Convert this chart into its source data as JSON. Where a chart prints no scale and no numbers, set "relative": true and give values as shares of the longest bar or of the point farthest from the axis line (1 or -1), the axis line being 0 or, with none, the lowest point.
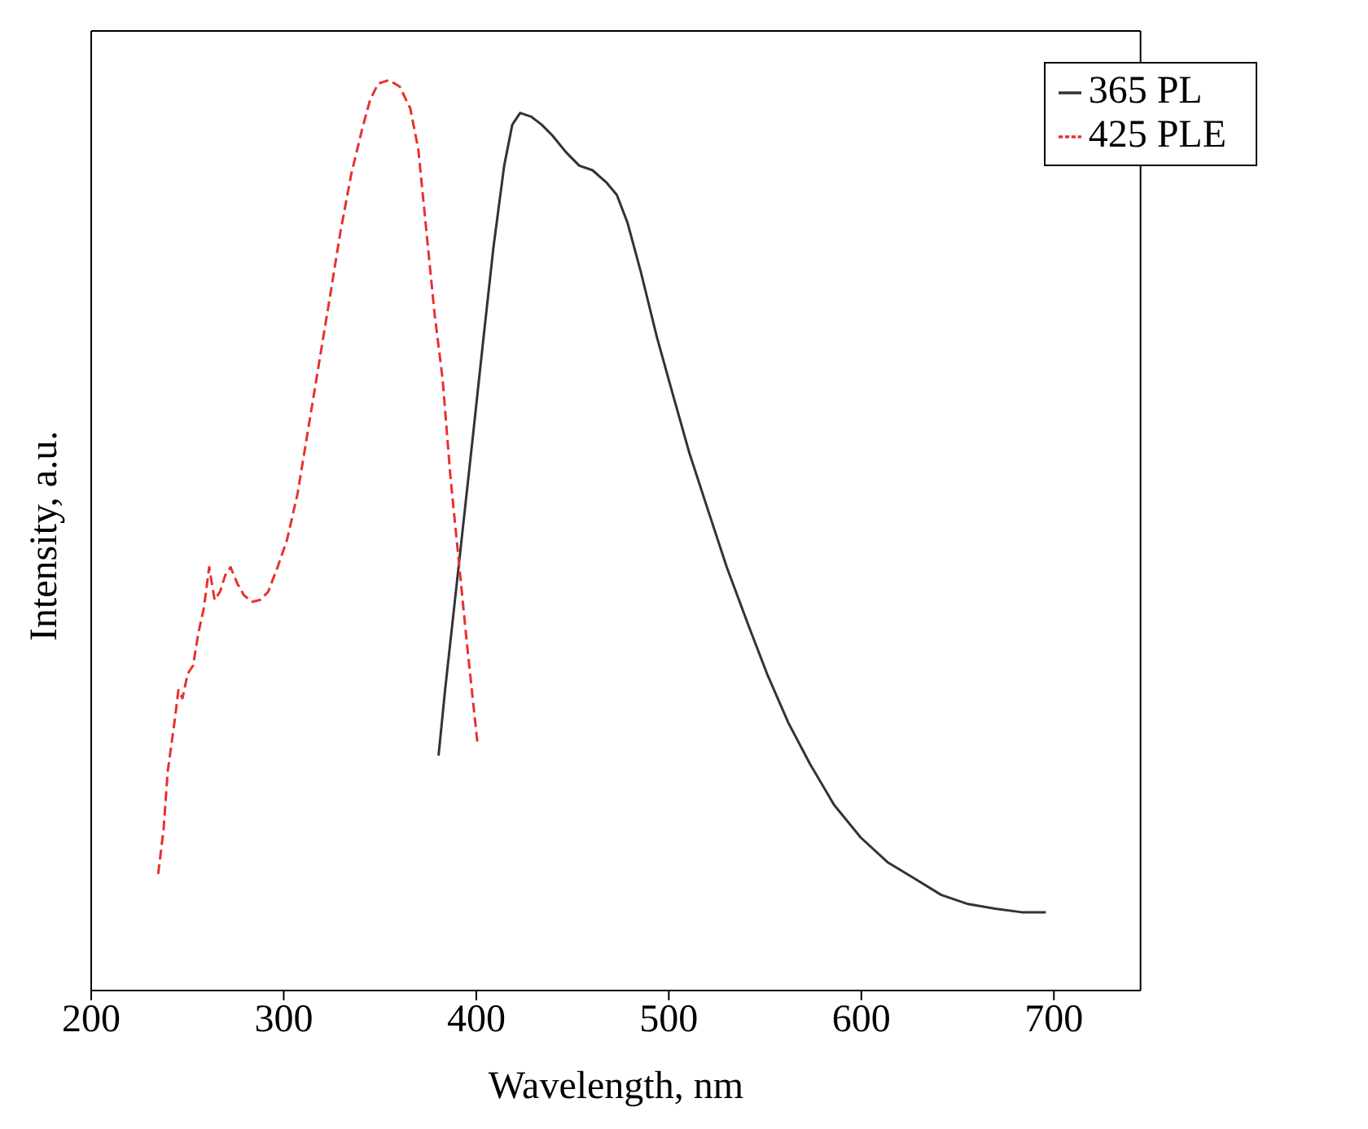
{
  "chart_data": {
    "type": "line",
    "xlabel": "Wavelength, nm",
    "ylabel": "Intensity, a.u.",
    "relative": true,
    "xlim": [
      200,
      745
    ],
    "xticks": [
      200,
      300,
      400,
      500,
      600,
      700
    ],
    "legend": "top right",
    "grid": false,
    "marker": "none",
    "series": [
      {
        "name": "365 PL",
        "color": "#333333",
        "line_style": "solid",
        "x": [
          380.4,
          383.8,
          388.0,
          392.2,
          397.8,
          403.3,
          408.9,
          414.5,
          418.7,
          422.8,
          428.4,
          434.0,
          439.6,
          446.5,
          453.5,
          460.4,
          467.4,
          473.0,
          478.6,
          485.5,
          493.9,
          502.2,
          510.6,
          520.3,
          530.1,
          541.2,
          551.0,
          562.1,
          573.3,
          585.8,
          599.7,
          613.6,
          627.6,
          641.5,
          655.4,
          669.4,
          683.3,
          695.8
        ],
        "values": [
          0.258,
          0.33,
          0.411,
          0.492,
          0.6,
          0.708,
          0.816,
          0.906,
          0.951,
          0.964,
          0.96,
          0.951,
          0.939,
          0.921,
          0.906,
          0.901,
          0.888,
          0.874,
          0.843,
          0.789,
          0.717,
          0.654,
          0.591,
          0.528,
          0.465,
          0.402,
          0.348,
          0.294,
          0.249,
          0.204,
          0.168,
          0.141,
          0.123,
          0.105,
          0.095,
          0.09,
          0.086,
          0.086
        ]
      },
      {
        "name": "425 PLE",
        "color": "#e8312f",
        "line_style": "dashed",
        "x": [
          234.8,
          237.6,
          239.7,
          243.2,
          245.3,
          247.4,
          250.1,
          252.9,
          255.7,
          258.5,
          261.3,
          264.1,
          266.9,
          269.6,
          272.4,
          275.9,
          279.4,
          283.6,
          287.7,
          291.9,
          296.8,
          301.7,
          307.2,
          312.8,
          318.4,
          324.0,
          329.5,
          335.1,
          340.7,
          344.8,
          349.0,
          354.6,
          360.2,
          365.7,
          369.9,
          374.1,
          378.3,
          382.5,
          386.6,
          390.8,
          395.0,
          400.6
        ],
        "values": [
          0.128,
          0.177,
          0.24,
          0.294,
          0.33,
          0.321,
          0.348,
          0.357,
          0.393,
          0.42,
          0.465,
          0.429,
          0.438,
          0.456,
          0.465,
          0.447,
          0.434,
          0.427,
          0.429,
          0.438,
          0.465,
          0.495,
          0.546,
          0.618,
          0.69,
          0.762,
          0.834,
          0.897,
          0.946,
          0.978,
          0.996,
          1,
          0.993,
          0.969,
          0.924,
          0.834,
          0.744,
          0.672,
          0.564,
          0.474,
          0.384,
          0.272
        ]
      }
    ]
  }
}
